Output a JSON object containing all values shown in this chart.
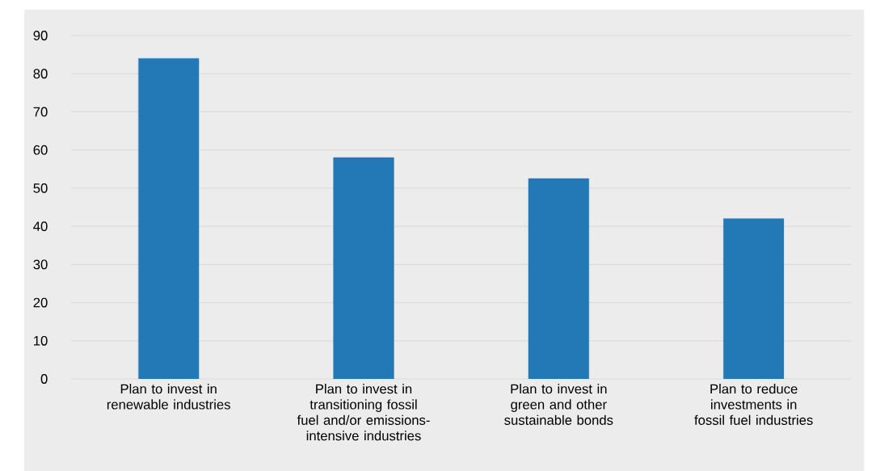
{
  "chart_data": {
    "type": "bar",
    "categories": [
      "Plan to invest in renewable industries",
      "Plan to invest in transitioning fossil fuel and/or emissions-intensive industries",
      "Plan to invest in green and other sustainable bonds",
      "Plan to reduce investments in fossil fuel industries"
    ],
    "values": [
      84,
      58,
      52.5,
      42
    ],
    "color": "#2279b5",
    "ylim": [
      0,
      90
    ],
    "yticks": [
      0,
      10,
      20,
      30,
      40,
      50,
      60,
      70,
      80,
      90
    ],
    "grid": "y"
  }
}
